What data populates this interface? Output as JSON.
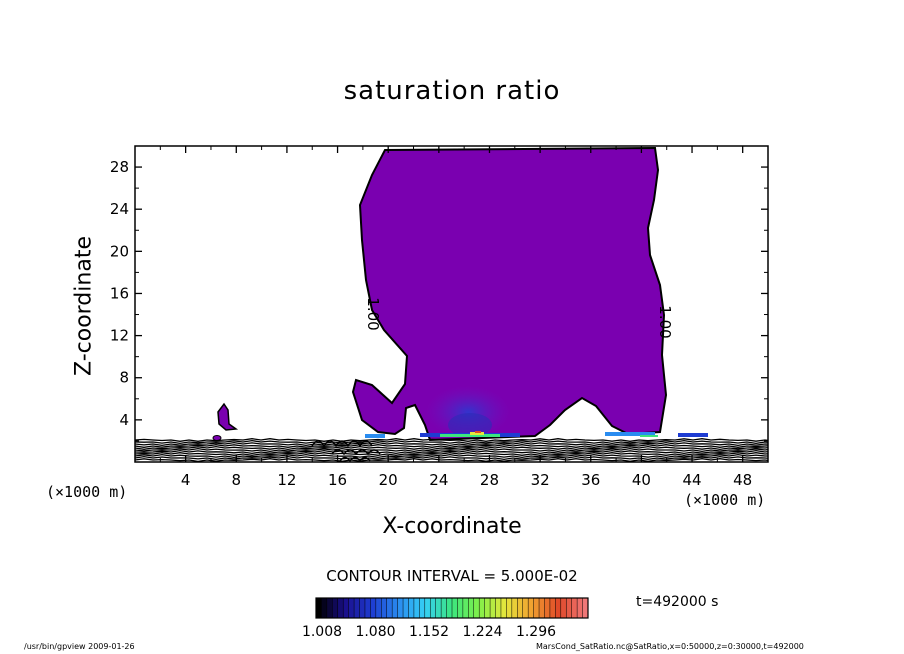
{
  "chart_data": {
    "type": "heatmap",
    "title": "saturation ratio",
    "xlabel": "X-coordinate",
    "ylabel": "Z-coordinate",
    "x_unit_label": "(×1000 m)",
    "xlim": [
      0,
      50
    ],
    "ylim": [
      0,
      30
    ],
    "x_ticks": [
      4,
      8,
      12,
      16,
      20,
      24,
      28,
      32,
      36,
      40,
      44,
      48
    ],
    "y_ticks": [
      4,
      8,
      12,
      16,
      20,
      24,
      28
    ],
    "contour_interval_text": "CONTOUR INTERVAL = 5.000E-02",
    "contour_labels": [
      "1.00",
      "1.00"
    ],
    "colorbar": {
      "ticks": [
        "1.008",
        "1.080",
        "1.152",
        "1.224",
        "1.296"
      ],
      "colors": [
        "#000000",
        "#1a0f8c",
        "#1e3cd2",
        "#2a8cf0",
        "#35d0f5",
        "#3ce67e",
        "#7ff04a",
        "#e6e63c",
        "#f0a030",
        "#e04828",
        "#f07878"
      ]
    },
    "fill_color": "#7a00b0",
    "time_text": "t=492000 s",
    "grid": false
  },
  "footer": {
    "left": "/usr/bin/gpview  2009-01-26",
    "right": "MarsCond_SatRatio.nc@SatRatio,x=0:50000,z=0:30000,t=492000"
  }
}
